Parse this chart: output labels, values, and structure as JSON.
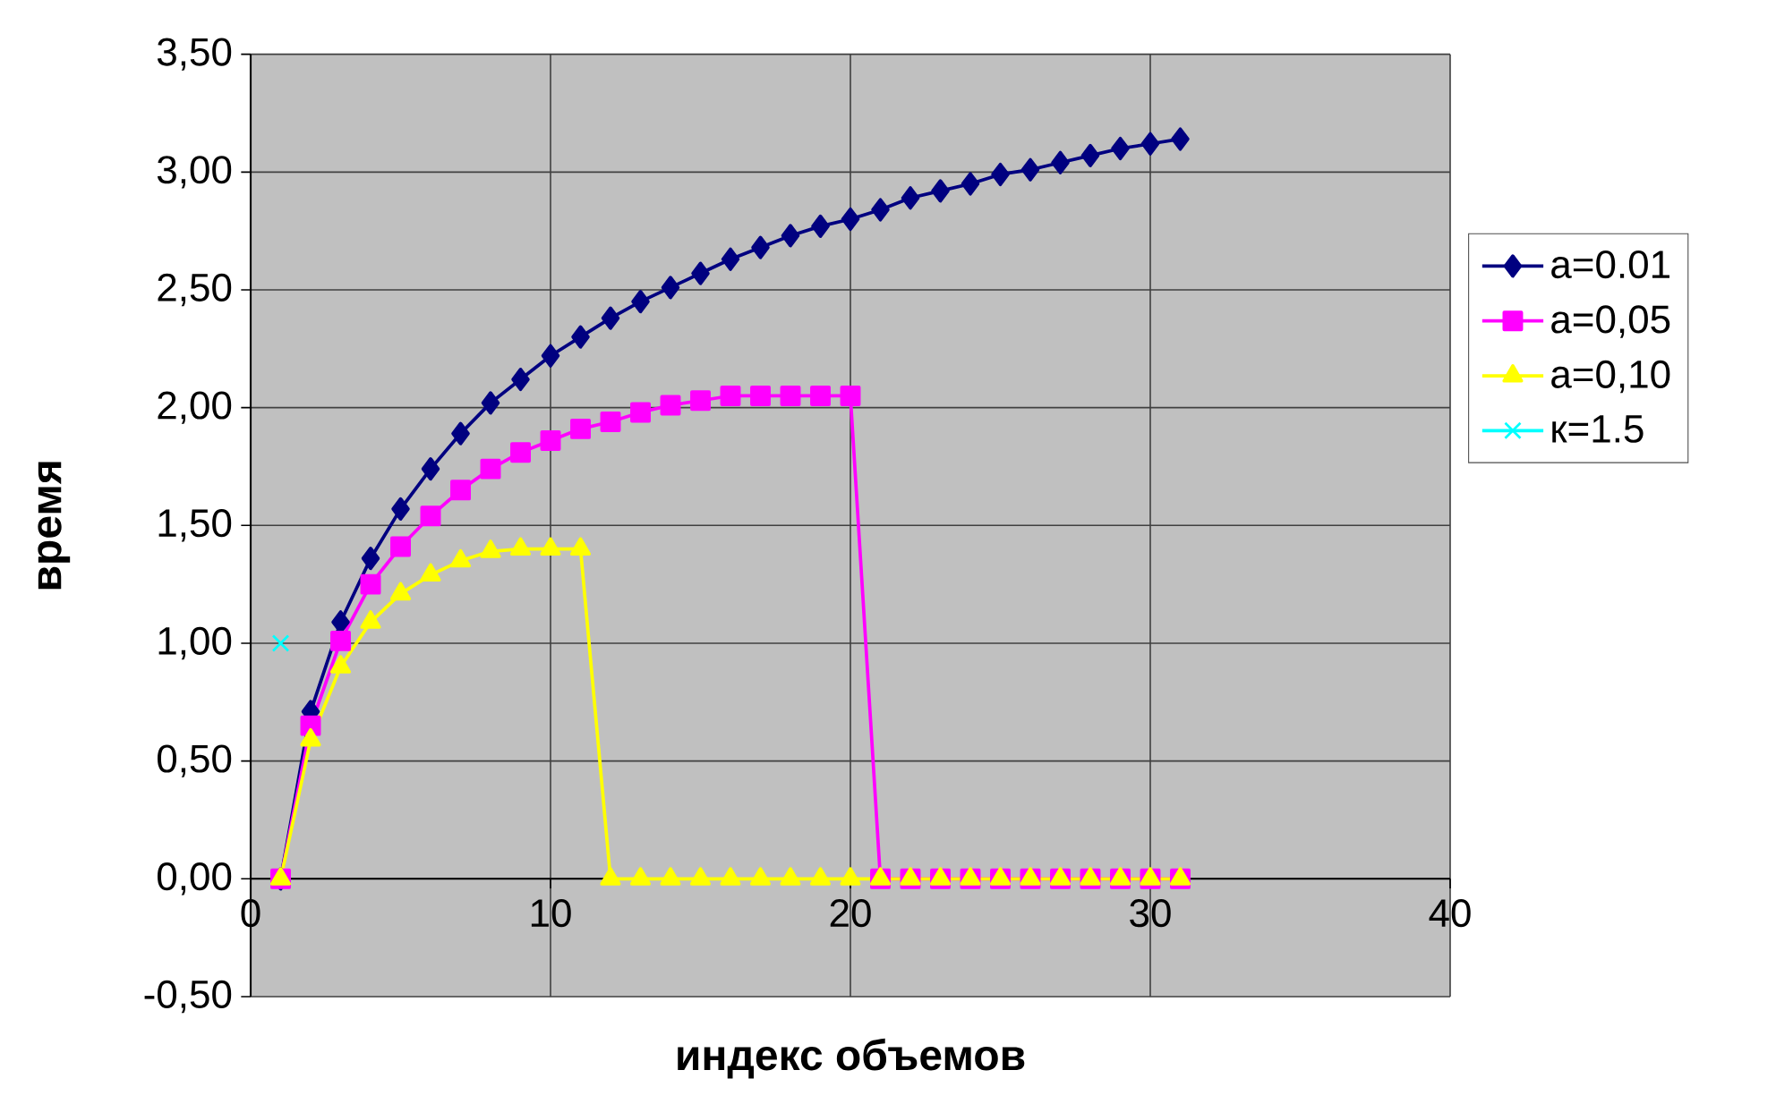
{
  "chart_data": {
    "type": "line",
    "xlabel": "индекс объемов",
    "ylabel": "время",
    "xlim": [
      0,
      40
    ],
    "xticks": [
      0,
      10,
      20,
      30,
      40
    ],
    "ylim": [
      -0.5,
      3.5
    ],
    "yticks": [
      {
        "value": -0.5,
        "label": "-0,50"
      },
      {
        "value": 0,
        "label": "0,00"
      },
      {
        "value": 0.5,
        "label": "0,50"
      },
      {
        "value": 1,
        "label": "1,00"
      },
      {
        "value": 1.5,
        "label": "1,50"
      },
      {
        "value": 2,
        "label": "2,00"
      },
      {
        "value": 2.5,
        "label": "2,50"
      },
      {
        "value": 3,
        "label": "3,00"
      },
      {
        "value": 3.5,
        "label": "3,50"
      }
    ],
    "grid": true,
    "legend": "right",
    "line_style": "solid",
    "x": [
      1,
      2,
      3,
      4,
      5,
      6,
      7,
      8,
      9,
      10,
      11,
      12,
      13,
      14,
      15,
      16,
      17,
      18,
      19,
      20,
      21,
      22,
      23,
      24,
      25,
      26,
      27,
      28,
      29,
      30,
      31
    ],
    "series": [
      {
        "name": "a=0.01",
        "color": "#000080",
        "marker": "diamond",
        "values": [
          0,
          0.71,
          1.09,
          1.36,
          1.57,
          1.74,
          1.89,
          2.02,
          2.12,
          2.22,
          2.3,
          2.38,
          2.45,
          2.51,
          2.57,
          2.63,
          2.68,
          2.73,
          2.77,
          2.8,
          2.84,
          2.89,
          2.92,
          2.95,
          2.99,
          3.01,
          3.04,
          3.07,
          3.1,
          3.12,
          3.14
        ]
      },
      {
        "name": "a=0,05",
        "color": "#ff00ff",
        "marker": "square",
        "values": [
          0,
          0.65,
          1.01,
          1.25,
          1.41,
          1.54,
          1.65,
          1.74,
          1.81,
          1.86,
          1.91,
          1.94,
          1.98,
          2.01,
          2.03,
          2.05,
          2.05,
          2.05,
          2.05,
          2.05,
          0,
          0,
          0,
          0,
          0,
          0,
          0,
          0,
          0,
          0,
          0
        ]
      },
      {
        "name": "a=0,10",
        "color": "#ffff00",
        "marker": "triangle",
        "values": [
          0,
          0.59,
          0.9,
          1.09,
          1.21,
          1.29,
          1.35,
          1.39,
          1.4,
          1.4,
          1.4,
          0,
          0,
          0,
          0,
          0,
          0,
          0,
          0,
          0,
          0,
          0,
          0,
          0,
          0,
          0,
          0,
          0,
          0,
          0,
          0
        ]
      },
      {
        "name": "к=1.5",
        "color": "#00ffff",
        "type": "scatter",
        "marker": "cross",
        "x": [
          1
        ],
        "values": [
          1.0
        ]
      }
    ]
  }
}
